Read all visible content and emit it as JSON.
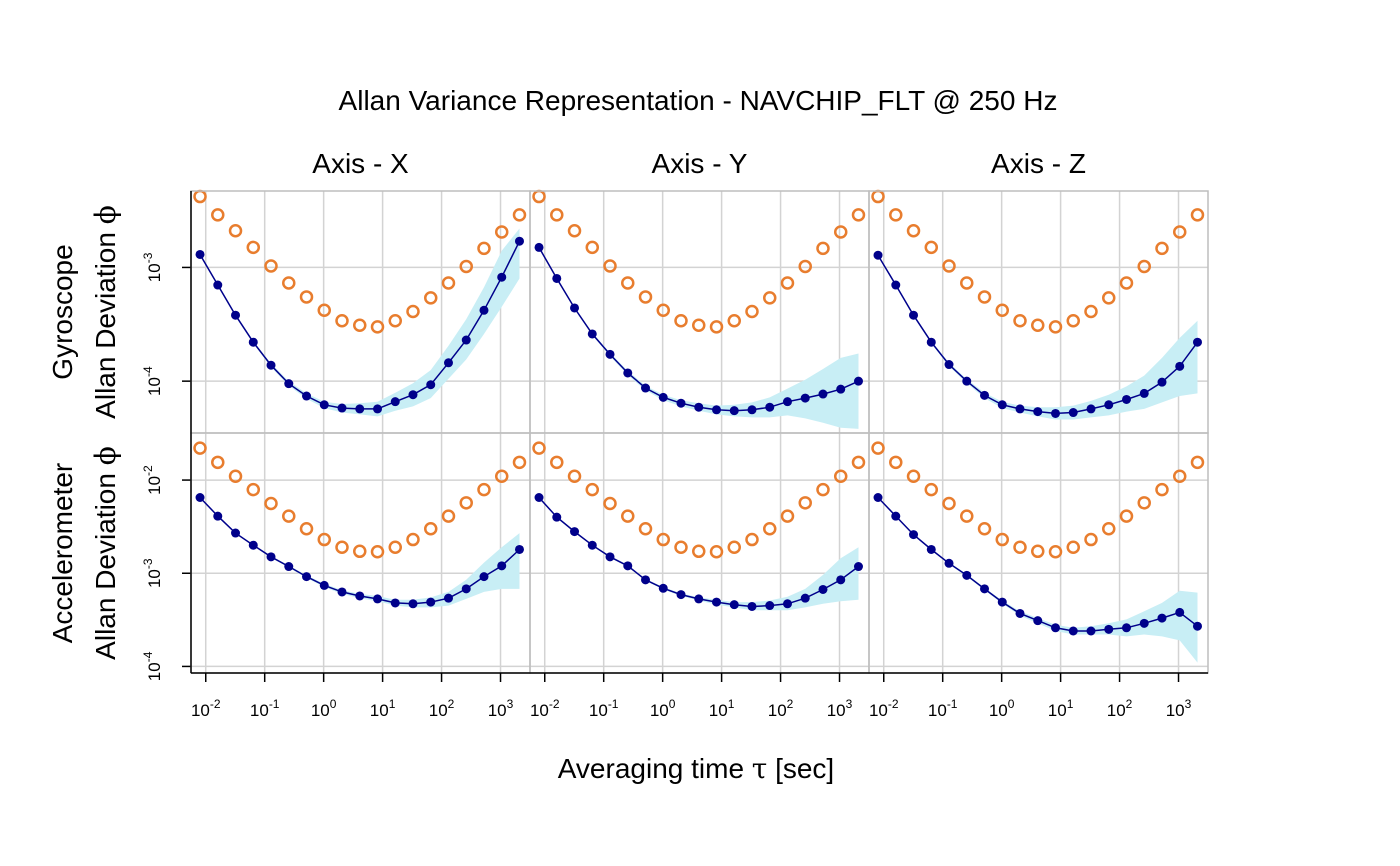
{
  "chart_data": {
    "type": "scatter",
    "title": "Allan Variance Representation - NAVCHIP_FLT @ 250 Hz",
    "xlabel_prefix": "Averaging time ",
    "xlabel_symbol": "τ",
    "xlabel_suffix": " [sec]",
    "ylabel_prefix": "Allan Deviation ",
    "ylabel_symbol": "ϕ",
    "x_scale": "log",
    "y_scale": "log",
    "grid": true,
    "colors": {
      "empirical": "#00008b",
      "ci_band": "#c8eef5",
      "orange_circles": "#e87d2e",
      "grid": "#d3d3d3",
      "panel_border": "#bebebe"
    },
    "x_ticks": [
      {
        "base": "10",
        "exp": "-2"
      },
      {
        "base": "10",
        "exp": "-1"
      },
      {
        "base": "10",
        "exp": "0"
      },
      {
        "base": "10",
        "exp": "1"
      },
      {
        "base": "10",
        "exp": "2"
      },
      {
        "base": "10",
        "exp": "3"
      }
    ],
    "columns": [
      "Axis - X",
      "Axis - Y",
      "Axis - Z"
    ],
    "x": [
      0.008,
      0.016,
      0.032,
      0.064,
      0.128,
      0.256,
      0.512,
      1.024,
      2.048,
      4.096,
      8.192,
      16.384,
      32.768,
      65.536,
      131.072,
      262.144,
      524.288,
      1048.576,
      2097.152
    ],
    "rows": [
      {
        "label": "Gyroscope",
        "ylim": [
          3.5e-05,
          0.0047
        ],
        "y_ticks": [
          {
            "base": "10",
            "exp": "-4"
          },
          {
            "base": "10",
            "exp": "-3"
          }
        ],
        "orange": [
          0.0042,
          0.0029,
          0.0021,
          0.0015,
          0.00103,
          0.00073,
          0.00055,
          0.00042,
          0.00034,
          0.00031,
          0.0003,
          0.00034,
          0.00041,
          0.00054,
          0.00073,
          0.00102,
          0.00147,
          0.00205,
          0.0029
        ],
        "panels": [
          {
            "values": [
              0.0013,
              0.0007,
              0.00038,
              0.00022,
              0.000138,
              9.5e-05,
              7.4e-05,
              6.2e-05,
              5.8e-05,
              5.7e-05,
              5.7e-05,
              6.6e-05,
              7.6e-05,
              9.3e-05,
              0.000145,
              0.00023,
              0.00042,
              0.00082,
              0.0017
            ],
            "ci_lower": [
              0.00127,
              0.00068,
              0.00037,
              0.000214,
              0.000133,
              9.1e-05,
              7e-05,
              5.8e-05,
              5.3e-05,
              5.1e-05,
              4.9e-05,
              5.5e-05,
              6e-05,
              7.1e-05,
              0.000105,
              0.000155,
              0.00026,
              0.00045,
              0.0008
            ],
            "ci_upper": [
              0.00133,
              0.00072,
              0.00039,
              0.000226,
              0.000143,
              0.0001,
              7.8e-05,
              6.6e-05,
              6.3e-05,
              6.4e-05,
              6.6e-05,
              7.9e-05,
              9.6e-05,
              0.000125,
              0.000205,
              0.00035,
              0.00067,
              0.0014,
              0.0022
            ]
          },
          {
            "values": [
              0.0015,
              0.0008,
              0.00044,
              0.00026,
              0.000172,
              0.000118,
              8.7e-05,
              7.2e-05,
              6.4e-05,
              5.9e-05,
              5.6e-05,
              5.5e-05,
              5.6e-05,
              5.9e-05,
              6.6e-05,
              7.1e-05,
              7.7e-05,
              8.5e-05,
              0.0001
            ],
            "ci_lower": [
              0.00146,
              0.00078,
              0.00043,
              0.000253,
              0.000166,
              0.000113,
              8.3e-05,
              6.8e-05,
              6e-05,
              5.5e-05,
              5.1e-05,
              4.9e-05,
              4.8e-05,
              4.8e-05,
              5e-05,
              4.7e-05,
              4.3e-05,
              3.9e-05,
              3.8e-05
            ],
            "ci_upper": [
              0.00154,
              0.00082,
              0.00045,
              0.000267,
              0.000178,
              0.000123,
              9.1e-05,
              7.6e-05,
              6.8e-05,
              6.4e-05,
              6.1e-05,
              6.2e-05,
              6.5e-05,
              7.2e-05,
              8.6e-05,
              0.000103,
              0.000128,
              0.00016,
              0.000175
            ]
          },
          {
            "values": [
              0.00128,
              0.0007,
              0.00038,
              0.00022,
              0.00014,
              0.0001,
              7.5e-05,
              6.2e-05,
              5.7e-05,
              5.4e-05,
              5.2e-05,
              5.3e-05,
              5.7e-05,
              6.2e-05,
              6.9e-05,
              7.8e-05,
              9.8e-05,
              0.000135,
              0.00022
            ],
            "ci_lower": [
              0.00125,
              0.00068,
              0.00037,
              0.000214,
              0.000135,
              9.6e-05,
              7.1e-05,
              5.8e-05,
              5.3e-05,
              4.9e-05,
              4.6e-05,
              4.6e-05,
              4.8e-05,
              5e-05,
              5.4e-05,
              5.7e-05,
              6.5e-05,
              7.4e-05,
              7.8e-05
            ],
            "ci_upper": [
              0.00131,
              0.00072,
              0.00039,
              0.000226,
              0.000145,
              0.000104,
              7.9e-05,
              6.6e-05,
              6.1e-05,
              5.9e-05,
              5.9e-05,
              6.1e-05,
              6.7e-05,
              7.6e-05,
              9e-05,
              0.000112,
              0.00016,
              0.00024,
              0.00034
            ]
          }
        ]
      },
      {
        "label": "Accelerometer",
        "ylim": [
          8.5e-05,
          0.032
        ],
        "y_ticks": [
          {
            "base": "10",
            "exp": "-4"
          },
          {
            "base": "10",
            "exp": "-3"
          },
          {
            "base": "10",
            "exp": "-2"
          }
        ],
        "orange": [
          0.022,
          0.0155,
          0.011,
          0.0079,
          0.0056,
          0.0041,
          0.003,
          0.0023,
          0.0019,
          0.00172,
          0.0017,
          0.0019,
          0.0023,
          0.003,
          0.0041,
          0.0057,
          0.0079,
          0.011,
          0.0155
        ],
        "panels": [
          {
            "values": [
              0.0065,
              0.0041,
              0.0027,
              0.002,
              0.0015,
              0.00118,
              0.00092,
              0.00074,
              0.00063,
              0.00057,
              0.00053,
              0.00048,
              0.00047,
              0.00049,
              0.00054,
              0.00068,
              0.00092,
              0.0012,
              0.0018
            ],
            "ci_lower": [
              0.0064,
              0.004,
              0.00265,
              0.00196,
              0.00147,
              0.00115,
              0.00089,
              0.00071,
              0.0006,
              0.00054,
              0.0005,
              0.00045,
              0.00043,
              0.00043,
              0.00045,
              0.00053,
              0.00063,
              0.00068,
              0.00068
            ],
            "ci_upper": [
              0.0066,
              0.0042,
              0.00275,
              0.00204,
              0.00153,
              0.00121,
              0.00095,
              0.00077,
              0.00066,
              0.0006,
              0.00057,
              0.00052,
              0.00052,
              0.00055,
              0.00063,
              0.00085,
              0.0013,
              0.0019,
              0.0027
            ]
          },
          {
            "values": [
              0.0065,
              0.004,
              0.0028,
              0.002,
              0.0015,
              0.0012,
              0.00085,
              0.00069,
              0.00059,
              0.00053,
              0.00049,
              0.00046,
              0.00044,
              0.00045,
              0.00047,
              0.00054,
              0.00067,
              0.00085,
              0.00118
            ],
            "ci_lower": [
              0.0064,
              0.0039,
              0.00274,
              0.00196,
              0.00147,
              0.00117,
              0.00083,
              0.00067,
              0.00057,
              0.00051,
              0.00046,
              0.00043,
              0.0004,
              0.0004,
              0.0004,
              0.00043,
              0.00047,
              0.0005,
              0.00052
            ],
            "ci_upper": [
              0.0066,
              0.0041,
              0.00286,
              0.00204,
              0.00153,
              0.00123,
              0.00087,
              0.00071,
              0.00061,
              0.00055,
              0.00052,
              0.00049,
              0.00049,
              0.00051,
              0.00056,
              0.00068,
              0.00096,
              0.00145,
              0.0019
            ]
          },
          {
            "values": [
              0.0065,
              0.0041,
              0.0026,
              0.0018,
              0.00128,
              0.00095,
              0.00068,
              0.00049,
              0.00037,
              0.00031,
              0.00026,
              0.00024,
              0.00024,
              0.00025,
              0.00026,
              0.00029,
              0.00033,
              0.00038,
              0.00027
            ],
            "ci_lower": [
              0.0064,
              0.004,
              0.00255,
              0.00176,
              0.00125,
              0.00092,
              0.00066,
              0.00047,
              0.00035,
              0.00029,
              0.00024,
              0.00022,
              0.00022,
              0.00022,
              0.00021,
              0.00022,
              0.00021,
              0.00019,
              0.00011
            ],
            "ci_upper": [
              0.0066,
              0.0042,
              0.00265,
              0.00184,
              0.00131,
              0.00098,
              0.0007,
              0.00051,
              0.00039,
              0.00033,
              0.00028,
              0.00026,
              0.00027,
              0.00029,
              0.00032,
              0.00039,
              0.00048,
              0.00065,
              0.00062
            ]
          }
        ]
      }
    ]
  }
}
